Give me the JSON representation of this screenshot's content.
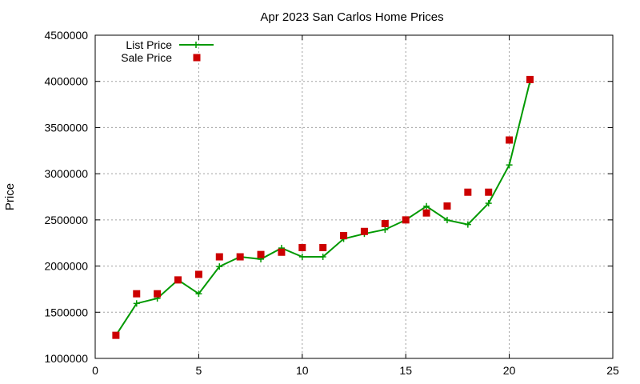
{
  "chart_data": {
    "type": "line",
    "title": "Apr 2023 San Carlos Home Prices",
    "xlabel": "",
    "ylabel": "Price",
    "xlim": [
      0,
      25
    ],
    "ylim": [
      1000000,
      4500000
    ],
    "x_ticks": [
      "0",
      "5",
      "10",
      "15",
      "20",
      "25"
    ],
    "y_ticks": [
      "1000000",
      "1500000",
      "2000000",
      "2500000",
      "3000000",
      "3500000",
      "4000000",
      "4500000"
    ],
    "grid": true,
    "legend_position": "top-left",
    "series": [
      {
        "name": "List Price",
        "style": "line-with-plus-markers",
        "color": "#009900",
        "x": [
          1,
          2,
          3,
          4,
          5,
          6,
          7,
          8,
          9,
          10,
          11,
          12,
          13,
          14,
          15,
          16,
          17,
          18,
          19,
          20,
          21
        ],
        "y": [
          1250000,
          1595000,
          1650000,
          1850000,
          1700000,
          1995000,
          2100000,
          2075000,
          2195000,
          2100000,
          2100000,
          2295000,
          2350000,
          2395000,
          2500000,
          2648000,
          2498000,
          2450000,
          2680000,
          3095000,
          4000000
        ]
      },
      {
        "name": "Sale Price",
        "style": "square-markers",
        "color": "#cc0000",
        "x": [
          1,
          2,
          3,
          4,
          5,
          6,
          7,
          8,
          9,
          10,
          11,
          12,
          13,
          14,
          15,
          16,
          17,
          18,
          19,
          20,
          21
        ],
        "y": [
          1250000,
          1700000,
          1700000,
          1850000,
          1910000,
          2100000,
          2100000,
          2125000,
          2150000,
          2200000,
          2200000,
          2330000,
          2375000,
          2460000,
          2500000,
          2575000,
          2650000,
          2800000,
          2800000,
          3365000,
          4020000
        ]
      }
    ]
  }
}
